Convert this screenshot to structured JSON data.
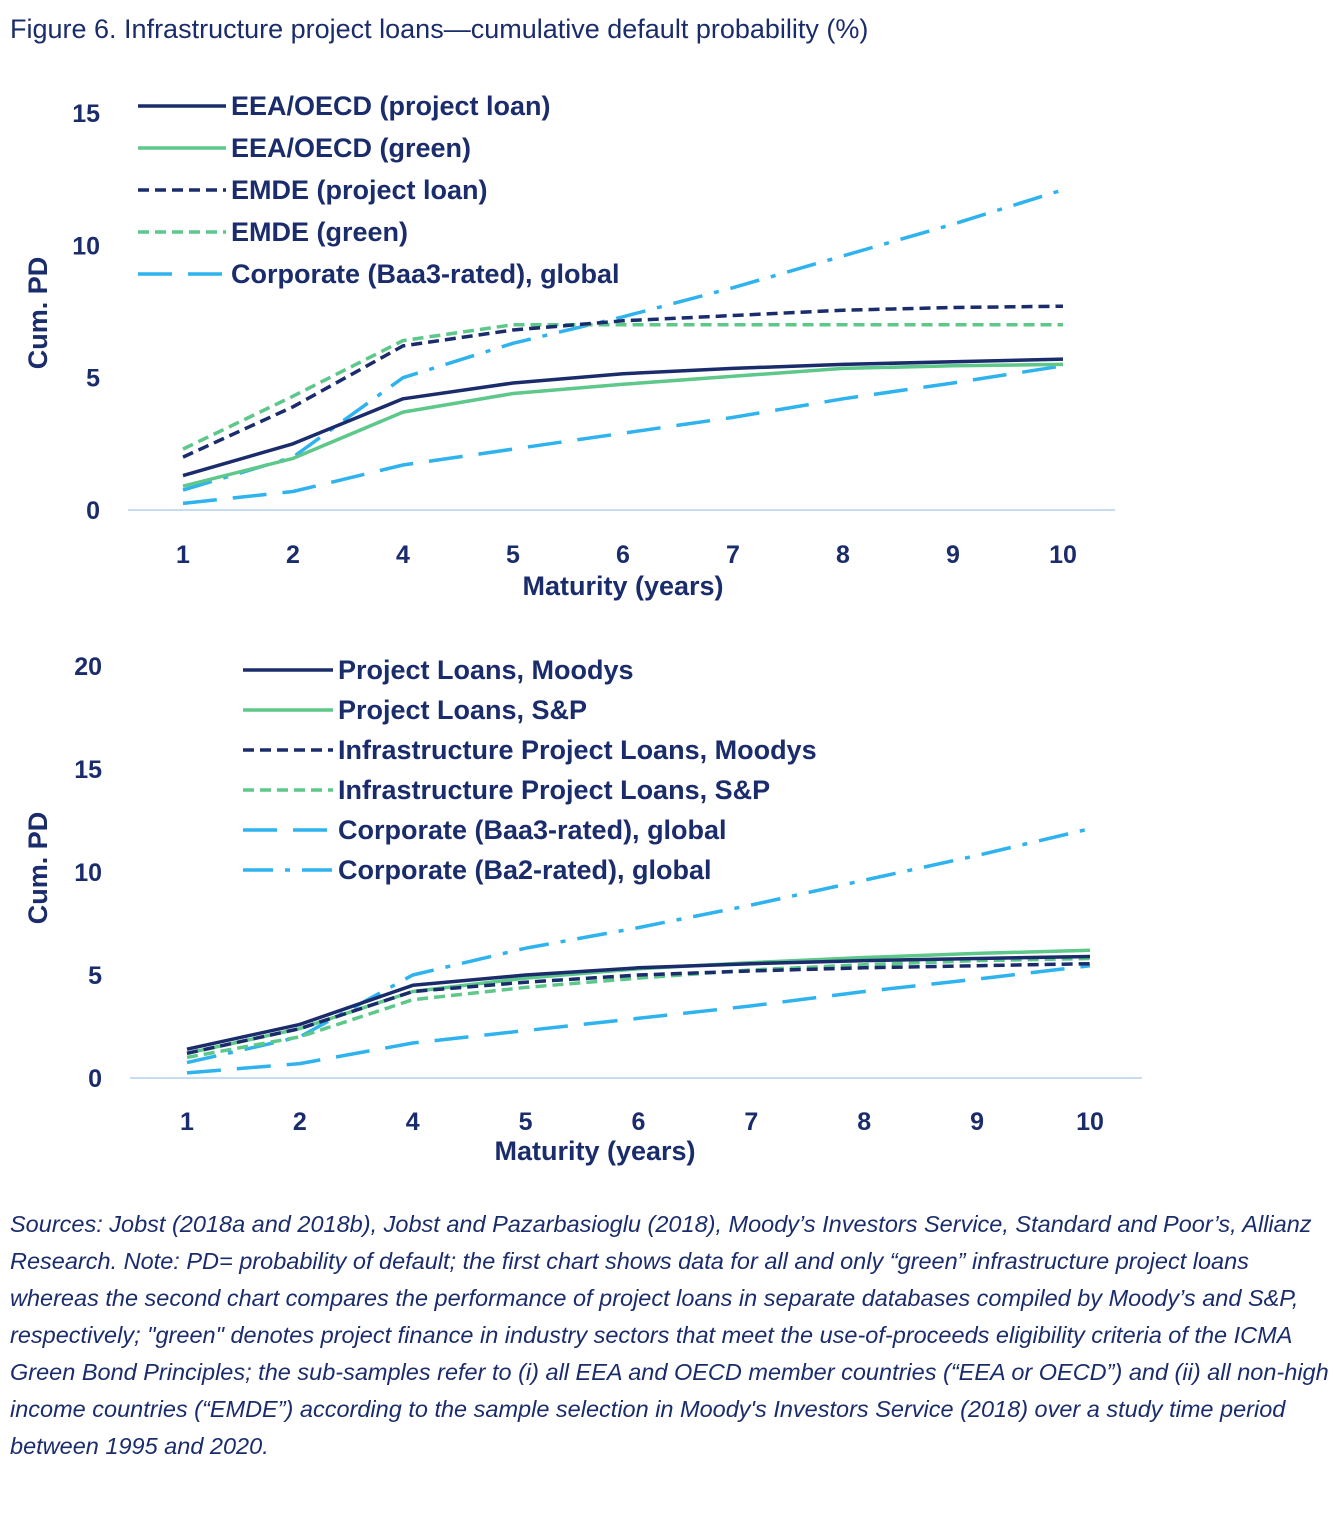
{
  "figure_title": "Figure 6. Infrastructure project loans—cumulative default probability (%)",
  "note": "Sources: Jobst (2018a and 2018b), Jobst and Pazarbasioglu (2018), Moody’s Investors Service, Standard and Poor’s, Allianz Research. Note: PD= probability of default; the first chart shows data for all and only “green” infrastructure project loans whereas the second chart compares the performance of project loans in separate databases compiled by Moody’s and S&P, respectively; \"green\" denotes project finance in industry sectors that meet the use-of-proceeds eligibility criteria of the ICMA Green Bond Principles; the sub-samples refer to (i) all EEA and OECD member countries (“EEA or OECD”) and (ii) all non-high income countries (“EMDE”) according to the sample selection in Moody's Investors Service (2018) over a study time period between 1995 and 2020.",
  "colors": {
    "navy": "#1a2c6b",
    "green": "#5dc88a",
    "lightblue": "#2fb3ee",
    "axis": "#c7dcf0"
  },
  "chart_data": [
    {
      "type": "line",
      "xlabel": "Maturity (years)",
      "ylabel": "Cum. PD",
      "categories": [
        "1",
        "2",
        "4",
        "5",
        "6",
        "7",
        "8",
        "9",
        "10"
      ],
      "ylim": [
        0,
        15
      ],
      "yticks": [
        "0",
        "5",
        "10",
        "15"
      ],
      "grid": false,
      "legend_position": "top-left",
      "series": [
        {
          "name": "EEA/OECD (project loan)",
          "style": "solid",
          "color": "#1a2c6b",
          "values": [
            1.3,
            2.5,
            4.2,
            4.8,
            5.15,
            5.35,
            5.5,
            5.6,
            5.7
          ]
        },
        {
          "name": "EEA/OECD (green)",
          "style": "solid",
          "color": "#5dc88a",
          "values": [
            0.9,
            1.95,
            3.7,
            4.4,
            4.75,
            5.05,
            5.35,
            5.45,
            5.5
          ]
        },
        {
          "name": "EMDE (project loan)",
          "style": "dash",
          "color": "#1a2c6b",
          "values": [
            2.0,
            3.9,
            6.2,
            6.8,
            7.15,
            7.35,
            7.55,
            7.65,
            7.7
          ]
        },
        {
          "name": "EMDE (green)",
          "style": "dash",
          "color": "#5dc88a",
          "values": [
            2.3,
            4.3,
            6.4,
            7.0,
            7.0,
            7.0,
            7.0,
            7.0,
            7.0
          ]
        },
        {
          "name": "Corporate (Baa3-rated), global",
          "style": "longdash",
          "color": "#2fb3ee",
          "values": [
            0.25,
            0.7,
            1.7,
            2.3,
            2.9,
            3.5,
            4.2,
            4.8,
            5.45
          ]
        },
        {
          "name": "",
          "style": "dashdot",
          "color": "#2fb3ee",
          "values": [
            0.75,
            2.0,
            5.0,
            6.3,
            7.3,
            8.4,
            9.6,
            10.8,
            12.1
          ]
        }
      ]
    },
    {
      "type": "line",
      "xlabel": "Maturity (years)",
      "ylabel": "Cum. PD",
      "categories": [
        "1",
        "2",
        "4",
        "5",
        "6",
        "7",
        "8",
        "9",
        "10"
      ],
      "ylim": [
        0,
        20
      ],
      "yticks": [
        "0",
        "5",
        "10",
        "15",
        "20"
      ],
      "grid": false,
      "legend_position": "top-left",
      "series": [
        {
          "name": "Project Loans, Moodys",
          "style": "solid",
          "color": "#1a2c6b",
          "values": [
            1.4,
            2.6,
            4.5,
            5.0,
            5.35,
            5.55,
            5.7,
            5.8,
            5.9
          ]
        },
        {
          "name": "Project Loans, S&P",
          "style": "solid",
          "color": "#5dc88a",
          "values": [
            1.2,
            2.4,
            4.2,
            4.85,
            5.3,
            5.6,
            5.85,
            6.05,
            6.2
          ]
        },
        {
          "name": "Infrastructure Project Loans, Moodys",
          "style": "dash",
          "color": "#1a2c6b",
          "values": [
            1.2,
            2.4,
            4.2,
            4.65,
            5.0,
            5.2,
            5.35,
            5.45,
            5.55
          ]
        },
        {
          "name": "Infrastructure Project Loans, S&P",
          "style": "dash",
          "color": "#5dc88a",
          "values": [
            1.0,
            2.0,
            3.8,
            4.4,
            4.85,
            5.25,
            5.5,
            5.7,
            5.8
          ]
        },
        {
          "name": "Corporate (Baa3-rated), global",
          "style": "longdash",
          "color": "#2fb3ee",
          "values": [
            0.25,
            0.7,
            1.7,
            2.3,
            2.9,
            3.5,
            4.2,
            4.8,
            5.45
          ]
        },
        {
          "name": "Corporate (Ba2-rated), global",
          "style": "dashdot",
          "color": "#2fb3ee",
          "values": [
            0.75,
            2.0,
            5.0,
            6.3,
            7.3,
            8.4,
            9.6,
            10.8,
            12.1
          ]
        }
      ]
    }
  ]
}
